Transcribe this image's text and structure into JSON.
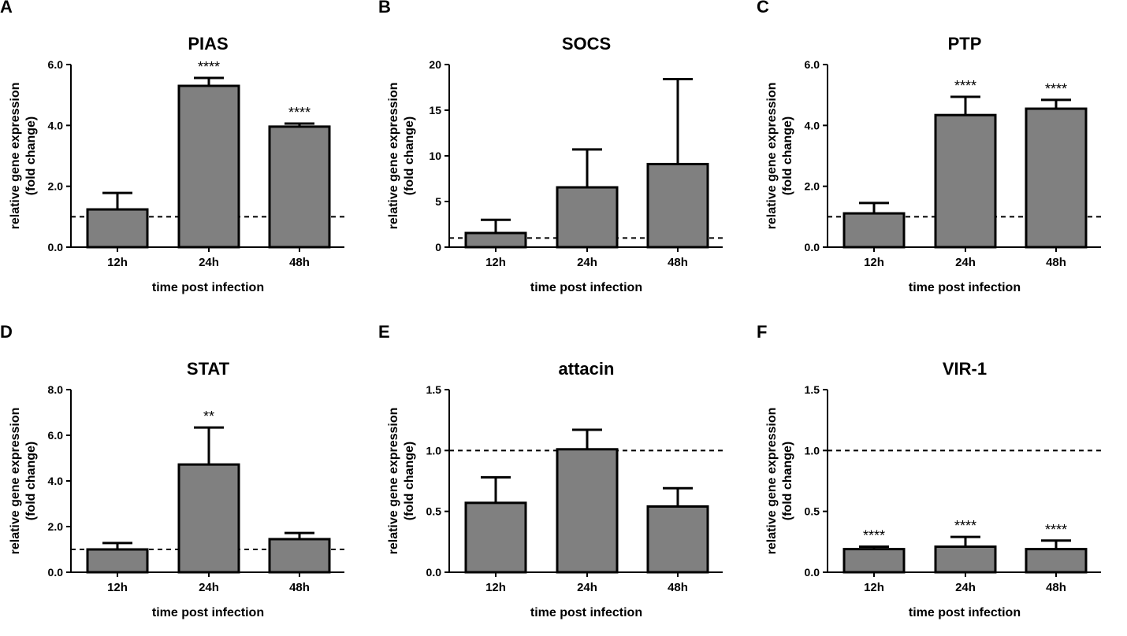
{
  "chart_data": [
    {
      "type": "bar",
      "panel": "A",
      "title": "PIAS",
      "xlabel": "time post infection",
      "ylabel": [
        "relative gene expression",
        "(fold change)"
      ],
      "categories": [
        "12h",
        "24h",
        "48h"
      ],
      "values": [
        1.24,
        5.3,
        3.96
      ],
      "error_upper": [
        1.78,
        5.56,
        4.06
      ],
      "significance": [
        "",
        "****",
        "****"
      ],
      "ylim": [
        0,
        6
      ],
      "yticks": [
        0,
        2,
        4,
        6
      ],
      "ytick_labels": [
        "0.0",
        "2.0",
        "4.0",
        "6.0"
      ],
      "reference_line": 1.0
    },
    {
      "type": "bar",
      "panel": "B",
      "title": "SOCS",
      "xlabel": "time post infection",
      "ylabel": [
        "relative gene expression",
        "(fold change)"
      ],
      "categories": [
        "12h",
        "24h",
        "48h"
      ],
      "values": [
        1.55,
        6.55,
        9.1
      ],
      "error_upper": [
        3.0,
        10.7,
        18.4
      ],
      "significance": [
        "",
        "",
        ""
      ],
      "ylim": [
        0,
        20
      ],
      "yticks": [
        0,
        5,
        10,
        15,
        20
      ],
      "ytick_labels": [
        "0",
        "5",
        "10",
        "15",
        "20"
      ],
      "reference_line": 1.0
    },
    {
      "type": "bar",
      "panel": "C",
      "title": "PTP",
      "xlabel": "time post infection",
      "ylabel": [
        "relative gene expression",
        "(fold change)"
      ],
      "categories": [
        "12h",
        "24h",
        "48h"
      ],
      "values": [
        1.11,
        4.34,
        4.55
      ],
      "error_upper": [
        1.45,
        4.94,
        4.84
      ],
      "significance": [
        "",
        "****",
        "****"
      ],
      "ylim": [
        0,
        6
      ],
      "yticks": [
        0,
        2,
        4,
        6
      ],
      "ytick_labels": [
        "0.0",
        "2.0",
        "4.0",
        "6.0"
      ],
      "reference_line": 1.0
    },
    {
      "type": "bar",
      "panel": "D",
      "title": "STAT",
      "xlabel": "time post infection",
      "ylabel": [
        "relative gene expression",
        "(fold change)"
      ],
      "categories": [
        "12h",
        "24h",
        "48h"
      ],
      "values": [
        1.0,
        4.72,
        1.45
      ],
      "error_upper": [
        1.28,
        6.34,
        1.72
      ],
      "significance": [
        "",
        "**",
        ""
      ],
      "ylim": [
        0,
        8
      ],
      "yticks": [
        0,
        2,
        4,
        6,
        8
      ],
      "ytick_labels": [
        "0.0",
        "2.0",
        "4.0",
        "6.0",
        "8.0"
      ],
      "reference_line": 1.0
    },
    {
      "type": "bar",
      "panel": "E",
      "title": "attacin",
      "xlabel": "time post infection",
      "ylabel": [
        "relative gene expression",
        "(fold change)"
      ],
      "categories": [
        "12h",
        "24h",
        "48h"
      ],
      "values": [
        0.57,
        1.01,
        0.54
      ],
      "error_upper": [
        0.78,
        1.17,
        0.69
      ],
      "significance": [
        "",
        "",
        ""
      ],
      "ylim": [
        0,
        1.5
      ],
      "yticks": [
        0,
        0.5,
        1,
        1.5
      ],
      "ytick_labels": [
        "0.0",
        "0.5",
        "1.0",
        "1.5"
      ],
      "reference_line": 1.0
    },
    {
      "type": "bar",
      "panel": "F",
      "title": "VIR-1",
      "xlabel": "time post infection",
      "ylabel": [
        "relative gene expression",
        "(fold change)"
      ],
      "categories": [
        "12h",
        "24h",
        "48h"
      ],
      "values": [
        0.19,
        0.21,
        0.19
      ],
      "error_upper": [
        0.21,
        0.29,
        0.26
      ],
      "significance": [
        "****",
        "****",
        "****"
      ],
      "ylim": [
        0,
        1.5
      ],
      "yticks": [
        0,
        0.5,
        1,
        1.5
      ],
      "ytick_labels": [
        "0.0",
        "0.5",
        "1.0",
        "1.5"
      ],
      "reference_line": 1.0
    }
  ],
  "colors": {
    "bar_fill": "#808080",
    "stroke": "#000000"
  }
}
